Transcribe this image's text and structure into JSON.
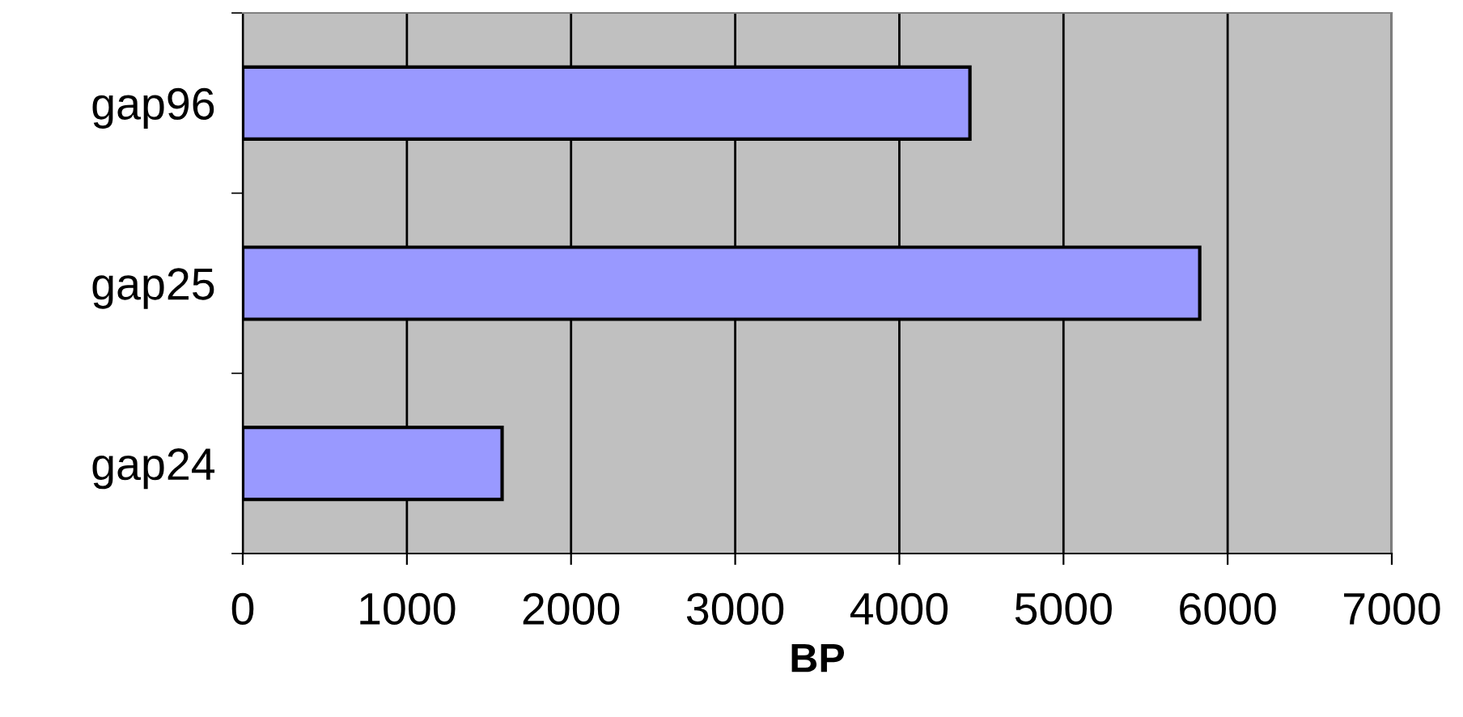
{
  "chart_data": {
    "type": "bar",
    "orientation": "horizontal",
    "xlabel": "BP",
    "categories": [
      "gap96",
      "gap25",
      "gap24"
    ],
    "values": [
      4430,
      5830,
      1580
    ],
    "color": "#9999ff",
    "xlim": [
      0,
      7000
    ],
    "xticks": [
      0,
      1000,
      2000,
      3000,
      4000,
      5000,
      6000,
      7000
    ],
    "grid": "x"
  }
}
